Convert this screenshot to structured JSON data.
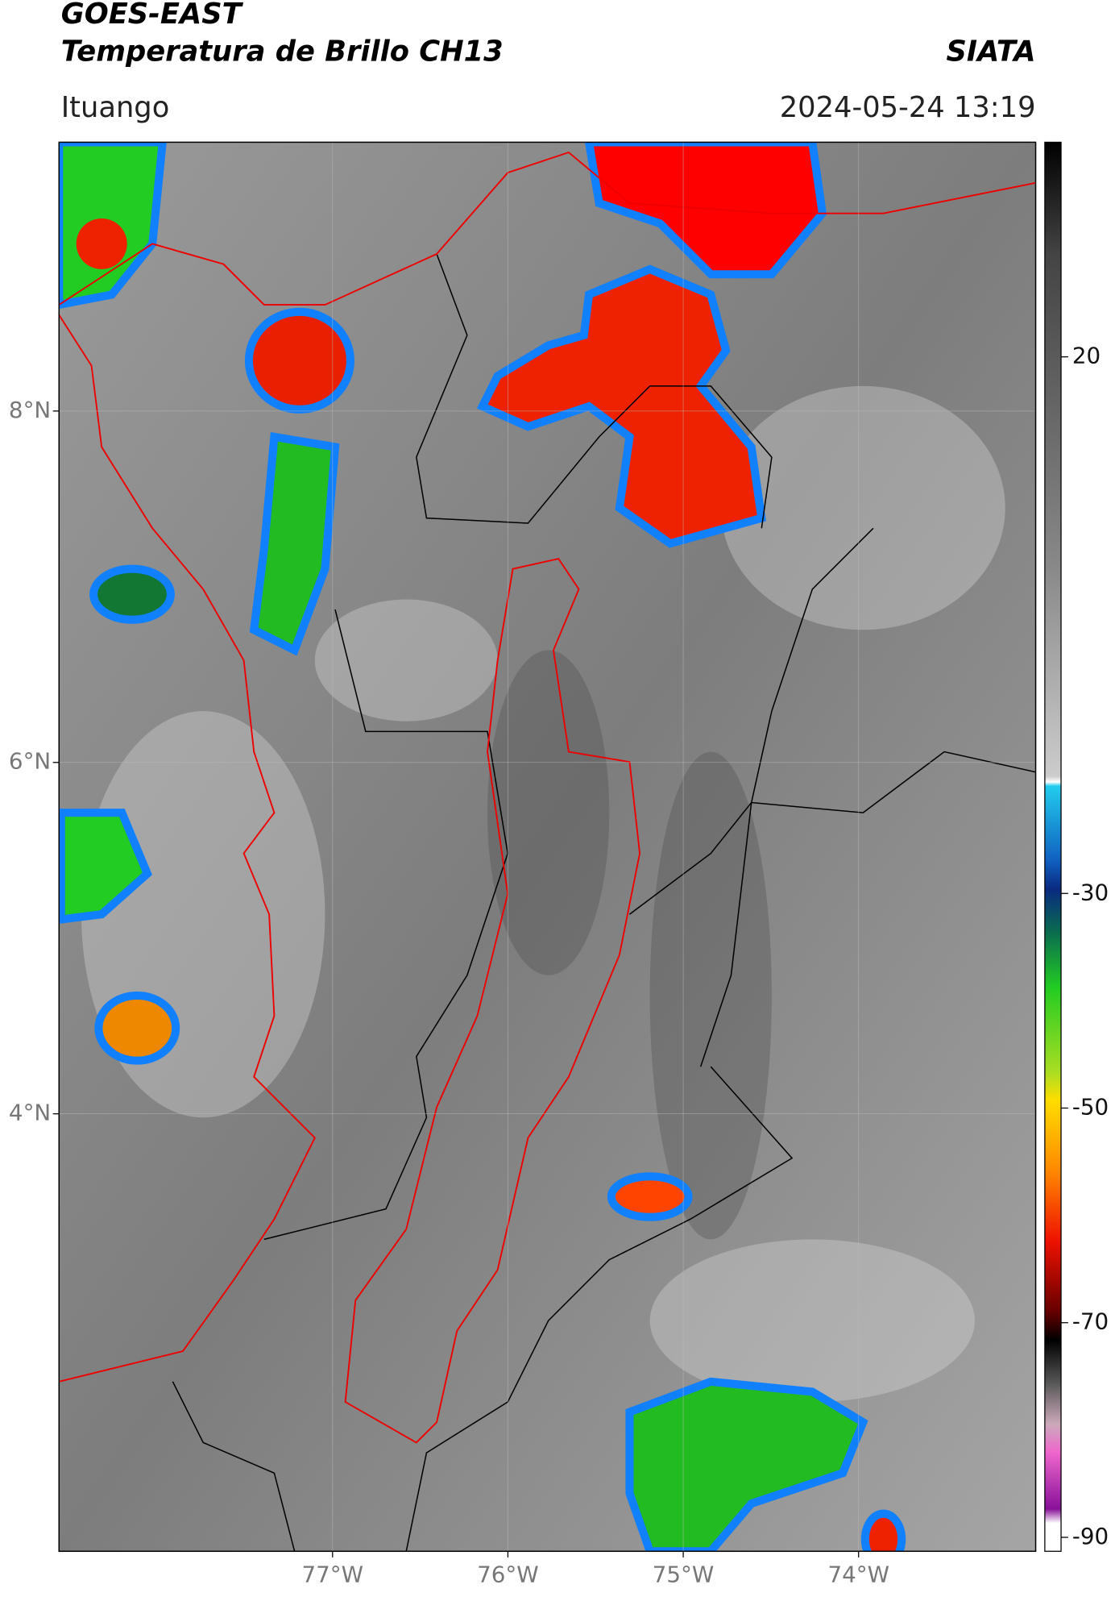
{
  "header": {
    "title": "GOES-EAST",
    "subtitle": "Temperatura de Brillo CH13",
    "source": "SIATA",
    "location": "Ituango",
    "timestamp": "2024-05-24 13:19"
  },
  "map": {
    "xlim": [
      -78.56,
      -72.99
    ],
    "ylim": [
      1.51,
      9.53
    ],
    "xticks": [
      {
        "value": -77,
        "label": "77°W"
      },
      {
        "value": -76,
        "label": "76°W"
      },
      {
        "value": -75,
        "label": "75°W"
      },
      {
        "value": -74,
        "label": "74°W"
      }
    ],
    "yticks": [
      {
        "value": 8,
        "label": "8°N"
      },
      {
        "value": 6,
        "label": "6°N"
      },
      {
        "value": 4,
        "label": "4°N"
      }
    ]
  },
  "colorbar": {
    "lim": [
      -91.3,
      40
    ],
    "ticks": [
      20,
      -30,
      -50,
      -70,
      -90
    ]
  }
}
